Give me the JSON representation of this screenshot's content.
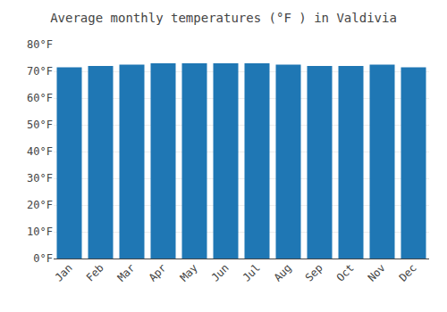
{
  "chart_data": {
    "type": "bar",
    "title": "Average monthly temperatures (°F ) in Valdivia",
    "categories": [
      "Jan",
      "Feb",
      "Mar",
      "Apr",
      "May",
      "Jun",
      "Jul",
      "Aug",
      "Sep",
      "Oct",
      "Nov",
      "Dec"
    ],
    "values": [
      71.5,
      72.0,
      72.5,
      73.0,
      73.0,
      73.0,
      73.0,
      72.5,
      72.0,
      72.0,
      72.5,
      71.5
    ],
    "ylim": [
      0,
      80
    ],
    "yticks": [
      {
        "value": 0,
        "label": "0°F"
      },
      {
        "value": 10,
        "label": "10°F"
      },
      {
        "value": 20,
        "label": "20°F"
      },
      {
        "value": 30,
        "label": "30°F"
      },
      {
        "value": 40,
        "label": "40°F"
      },
      {
        "value": 50,
        "label": "50°F"
      },
      {
        "value": 60,
        "label": "60°F"
      },
      {
        "value": 70,
        "label": "70°F"
      },
      {
        "value": 80,
        "label": "80°F"
      }
    ],
    "grid": true
  }
}
